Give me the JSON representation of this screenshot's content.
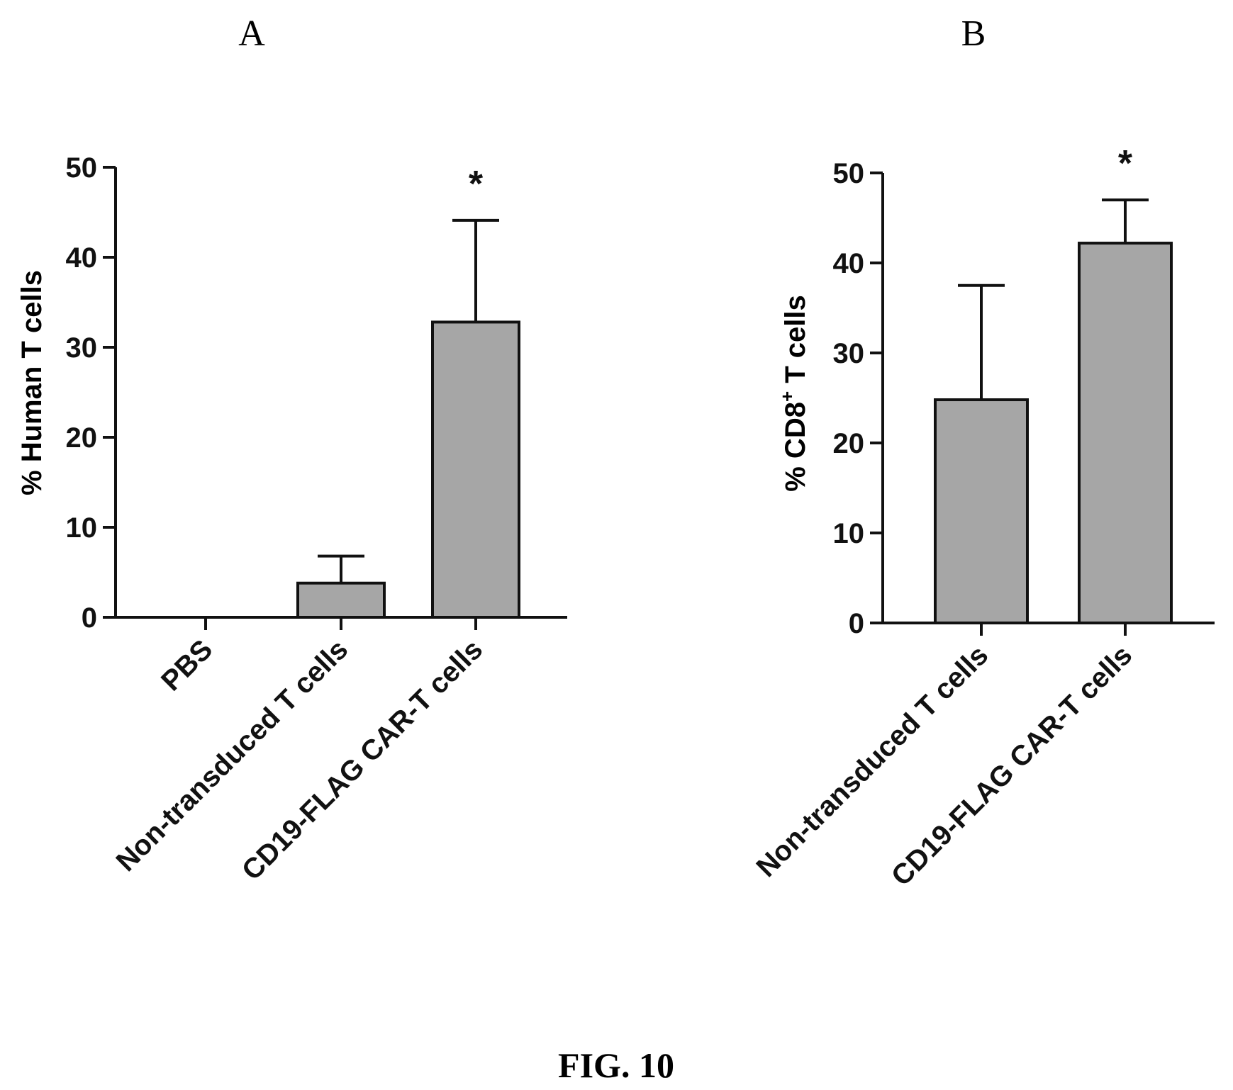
{
  "figure_label": "FIG. 10",
  "colors": {
    "bar_fill": "#a6a6a6",
    "stroke": "#111111",
    "text": "#111111",
    "background": "#ffffff"
  },
  "chart_data": [
    {
      "type": "bar",
      "panel_label": "A",
      "categories": [
        "PBS",
        "Non-transduced T cells",
        "CD19-FLAG CAR-T cells"
      ],
      "values": [
        0,
        3.8,
        32.8
      ],
      "error_upper": [
        0,
        6.8,
        44.1
      ],
      "annotations": [
        "",
        "",
        "*"
      ],
      "ylabel": "% Human T cells",
      "xlabel": "",
      "ylim": [
        0,
        50
      ],
      "yticks": [
        0,
        10,
        20,
        30,
        40,
        50
      ],
      "grid": false
    },
    {
      "type": "bar",
      "panel_label": "B",
      "categories": [
        "Non-transduced T cells",
        "CD19-FLAG CAR-T cells"
      ],
      "values": [
        24.8,
        42.2
      ],
      "error_upper": [
        37.5,
        47.0
      ],
      "annotations": [
        "",
        "*"
      ],
      "ylabel": "% CD8+ T cells",
      "ylabel_parts": {
        "before": "% CD8",
        "superscript": "+",
        "after": " T cells"
      },
      "xlabel": "",
      "ylim": [
        0,
        50
      ],
      "yticks": [
        0,
        10,
        20,
        30,
        40,
        50
      ],
      "grid": false
    }
  ]
}
